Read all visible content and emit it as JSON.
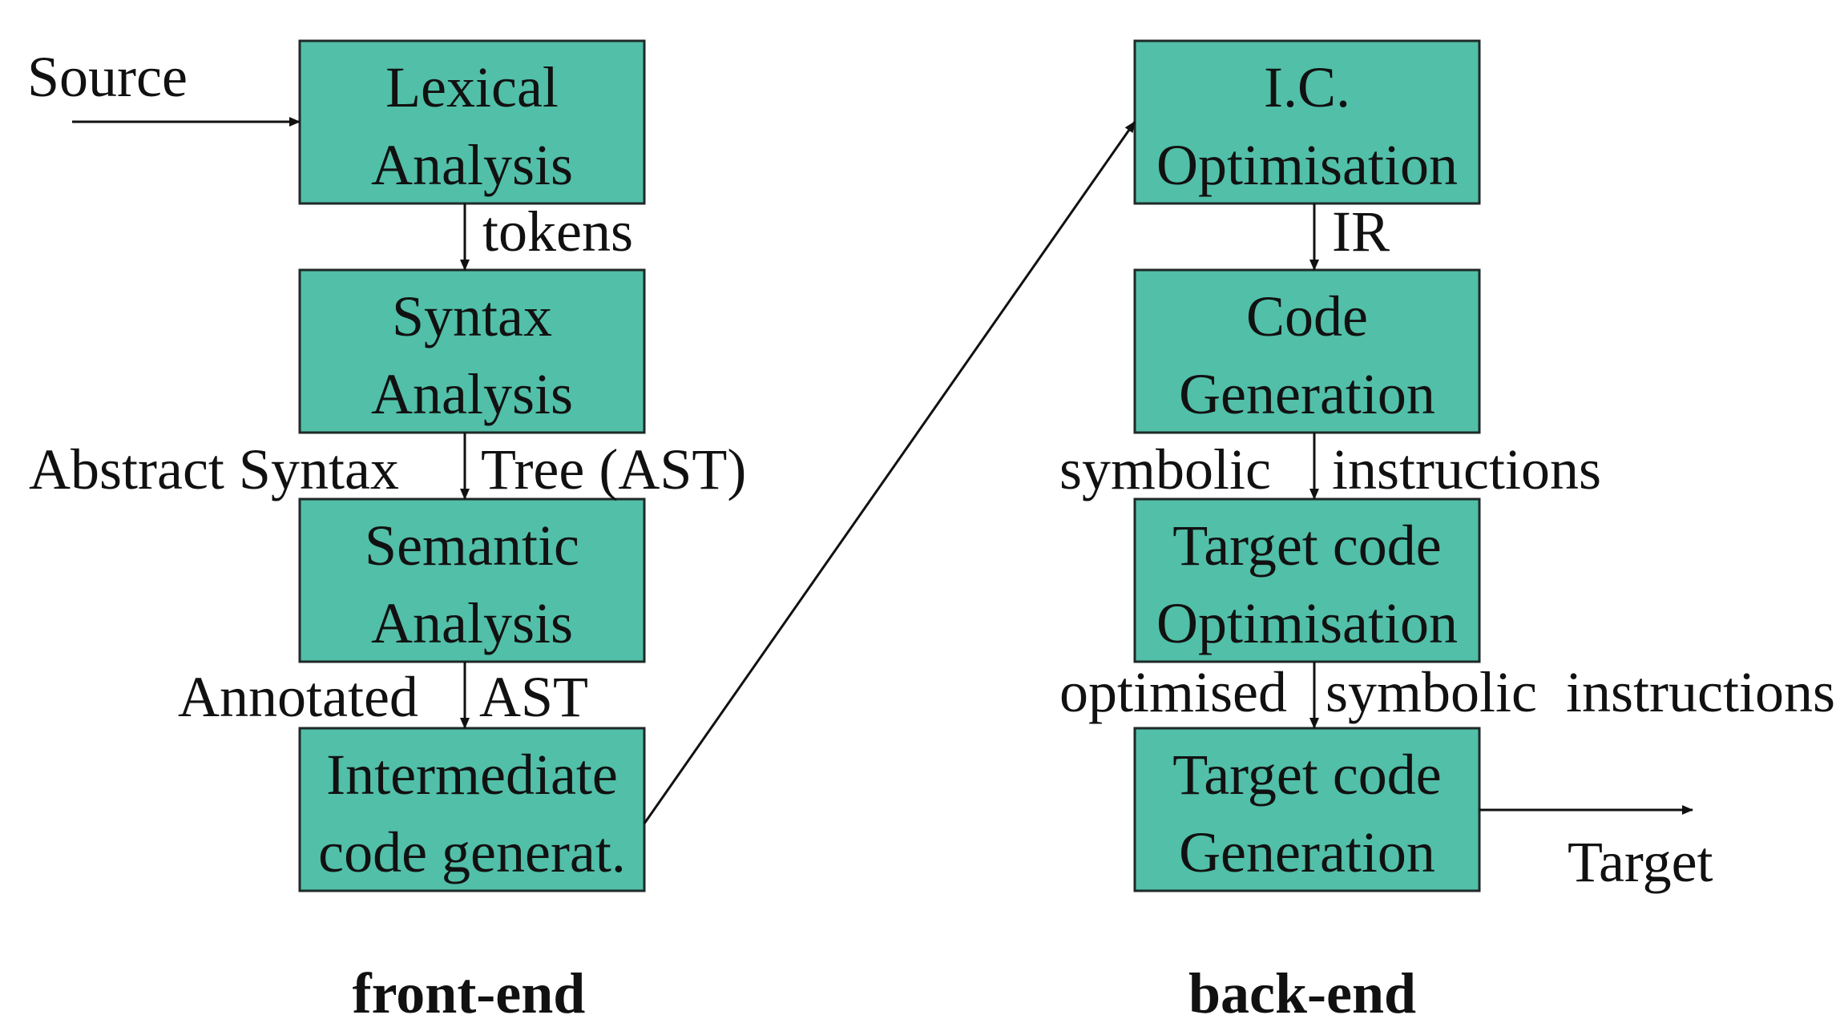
{
  "stages": {
    "lexical": {
      "line1": "Lexical",
      "line2": "Analysis"
    },
    "syntax": {
      "line1": "Syntax",
      "line2": "Analysis"
    },
    "semantic": {
      "line1": "Semantic",
      "line2": "Analysis"
    },
    "intermediate": {
      "line1": "Intermediate",
      "line2": "code generat."
    },
    "ic_optimisation": {
      "line1": "I.C.",
      "line2": "Optimisation"
    },
    "code_generation": {
      "line1": "Code",
      "line2": "Generation"
    },
    "target_optimisation": {
      "line1": "Target code",
      "line2": "Optimisation"
    },
    "target_generation": {
      "line1": "Target code",
      "line2": "Generation"
    }
  },
  "labels": {
    "source": "Source",
    "tokens": "tokens",
    "ast_left": "Abstract Syntax",
    "ast_right": "Tree (AST)",
    "annotated_left": "Annotated",
    "annotated_right": "AST",
    "ir": "IR",
    "symbolic_left": "symbolic",
    "symbolic_right": "instructions",
    "optimised_left": "optimised",
    "optimised_right": "symbolic  instructions",
    "target": "Target"
  },
  "sections": {
    "front_end": "front-end",
    "back_end": "back-end"
  },
  "colors": {
    "box_fill": "#52bfa8",
    "box_stroke": "#1f2a27",
    "text": "#111111"
  }
}
